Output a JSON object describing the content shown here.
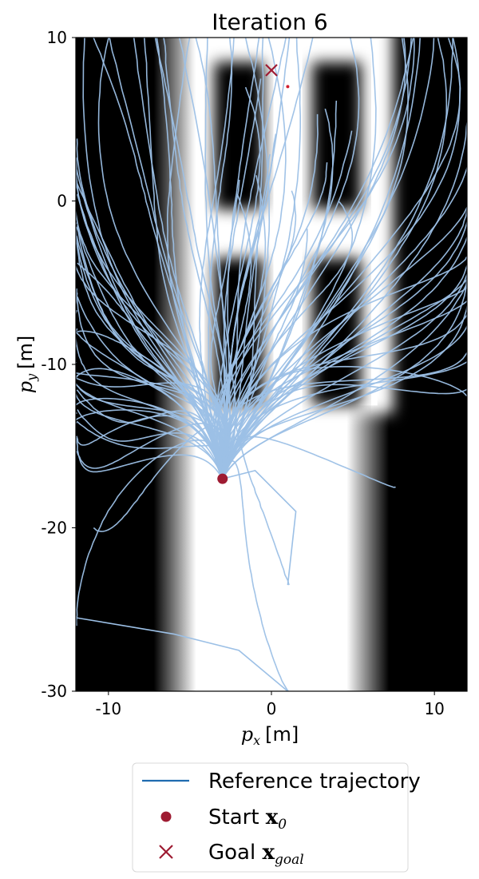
{
  "chart_data": {
    "type": "line",
    "title": "Iteration 6",
    "xlabel_sym": "p",
    "xlabel_sub": "x",
    "xlabel_unit": "[m]",
    "ylabel_sym": "p",
    "ylabel_sub": "y",
    "ylabel_unit": "[m]",
    "xlim": [
      -12,
      12
    ],
    "ylim": [
      -30,
      10
    ],
    "xticks": [
      -10,
      0,
      10
    ],
    "yticks": [
      -30,
      -20,
      -10,
      0,
      10
    ],
    "grid": false,
    "legend_position": "below",
    "start": {
      "x": -3,
      "y": -17
    },
    "goal": {
      "x": 0,
      "y": 8
    },
    "goal_sample_point": {
      "x": 1,
      "y": 7
    },
    "background_field": {
      "type": "grayscale_cost_map",
      "free_corridor_x": [
        -5.5,
        5.5
      ],
      "upper_free_region_x": [
        -3.5,
        6.5
      ],
      "upper_free_region_y": [
        -13,
        10
      ],
      "obstacles": [
        {
          "x": [
            -3.5,
            -0.5
          ],
          "y": [
            -0.5,
            8.5
          ]
        },
        {
          "x": [
            2.5,
            5.5
          ],
          "y": [
            -0.5,
            8.5
          ]
        },
        {
          "x": [
            -3.5,
            -0.5
          ],
          "y": [
            -12.5,
            -3.5
          ]
        },
        {
          "x": [
            2.5,
            5.5
          ],
          "y": [
            -12.5,
            -3.5
          ]
        }
      ]
    },
    "trajectory_bundle_count": 110,
    "series": [
      {
        "name": "Reference trajectory",
        "color": "#9cc0e6",
        "description_color": "#1f6cb0",
        "representative_endpoints": [
          {
            "x": -12,
            "y": -8
          },
          {
            "x": -12,
            "y": -13
          },
          {
            "x": -11,
            "y": -20
          },
          {
            "x": -12,
            "y": -26
          },
          {
            "x": 1,
            "y": -30
          },
          {
            "x": 1,
            "y": -23.5
          },
          {
            "x": 7.5,
            "y": -17.5
          },
          {
            "x": 12,
            "y": -12
          },
          {
            "x": 12,
            "y": -6
          },
          {
            "x": 12,
            "y": 4
          },
          {
            "x": -4,
            "y": 10
          },
          {
            "x": 1,
            "y": 10
          },
          {
            "x": 6,
            "y": 10
          },
          {
            "x": -11,
            "y": 10
          }
        ]
      }
    ],
    "legend": {
      "items": [
        {
          "label": "Reference trajectory",
          "marker": "line",
          "color": "#1f6cb0"
        },
        {
          "label": "Start ",
          "math": "x",
          "sub": "0",
          "marker": "circle",
          "color": "#9e1b32"
        },
        {
          "label": "Goal ",
          "math": "x",
          "sub": "goal",
          "marker": "cross",
          "color": "#9e1b32"
        }
      ]
    }
  }
}
